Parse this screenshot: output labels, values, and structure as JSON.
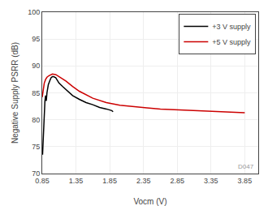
{
  "chart_data": {
    "type": "line",
    "xlabel": "Vocm (V)",
    "ylabel": "Negative Supply PSRR (dB)",
    "xlim": [
      0.85,
      4.05
    ],
    "ylim": [
      70,
      100
    ],
    "xticks": [
      0.85,
      1.35,
      1.85,
      2.35,
      2.85,
      3.35,
      3.85
    ],
    "yticks": [
      70,
      75,
      80,
      85,
      90,
      95,
      100
    ],
    "grid": true,
    "legend": "upper right",
    "annotations": [
      "D047"
    ],
    "series": [
      {
        "name": "+3 V supply",
        "color": "#000000",
        "x": [
          0.85,
          0.855,
          0.86,
          0.865,
          0.87,
          0.875,
          0.88,
          0.89,
          0.9,
          0.91,
          0.92,
          0.94,
          0.96,
          0.98,
          1.0,
          1.02,
          1.05,
          1.08,
          1.1,
          1.15,
          1.2,
          1.25,
          1.3,
          1.4,
          1.5,
          1.6,
          1.7,
          1.8,
          1.88,
          1.9
        ],
        "values": [
          74.0,
          73.5,
          75.0,
          76.5,
          79.0,
          80.5,
          82.0,
          83.5,
          84.5,
          83.5,
          85.0,
          86.5,
          87.2,
          87.8,
          88.0,
          88.0,
          87.8,
          87.3,
          86.8,
          86.2,
          85.6,
          85.0,
          84.5,
          83.8,
          83.2,
          82.8,
          82.3,
          82.0,
          81.7,
          81.5
        ]
      },
      {
        "name": "+5 V supply",
        "color": "#cc0000",
        "x": [
          0.85,
          0.86,
          0.87,
          0.88,
          0.9,
          0.92,
          0.95,
          0.98,
          1.0,
          1.05,
          1.1,
          1.2,
          1.3,
          1.4,
          1.6,
          1.8,
          2.0,
          2.2,
          2.4,
          2.6,
          2.8,
          3.0,
          3.2,
          3.4,
          3.6,
          3.85
        ],
        "values": [
          84.2,
          85.0,
          86.0,
          86.8,
          87.5,
          87.9,
          88.2,
          88.4,
          88.5,
          88.4,
          88.0,
          87.2,
          86.2,
          85.3,
          84.0,
          83.2,
          82.7,
          82.4,
          82.2,
          82.0,
          81.9,
          81.8,
          81.7,
          81.6,
          81.5,
          81.3
        ]
      }
    ]
  }
}
